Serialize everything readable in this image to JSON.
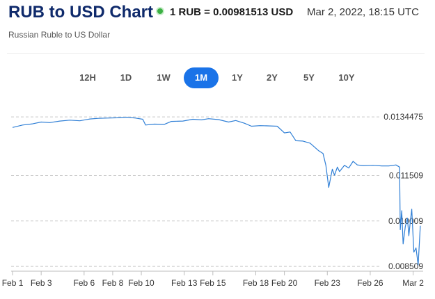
{
  "header": {
    "title": "RUB to USD Chart",
    "rate": "1 RUB = 0.00981513 USD",
    "timestamp": "Mar 2, 2022, 18:15 UTC",
    "subtitle": "Russian Ruble to US Dollar"
  },
  "ranges": [
    {
      "label": "12H",
      "active": false
    },
    {
      "label": "1D",
      "active": false
    },
    {
      "label": "1W",
      "active": false
    },
    {
      "label": "1M",
      "active": true
    },
    {
      "label": "1Y",
      "active": false
    },
    {
      "label": "2Y",
      "active": false
    },
    {
      "label": "5Y",
      "active": false
    },
    {
      "label": "10Y",
      "active": false
    }
  ],
  "colors": {
    "accent": "#1a73e8",
    "line": "#2f7fd6",
    "title": "#0f2a6b",
    "live": "#3cb043"
  },
  "chart_data": {
    "type": "line",
    "ylim": [
      0.00835,
      0.01375
    ],
    "y_ticks": [
      {
        "value": 0.0134475,
        "label": "0.0134475"
      },
      {
        "value": 0.011509,
        "label": "0.011509"
      },
      {
        "value": 0.010009,
        "label": "0.010009"
      },
      {
        "value": 0.008509,
        "label": "0.008509"
      }
    ],
    "x_ticks": [
      {
        "x": 1,
        "label": "Feb 1"
      },
      {
        "x": 3,
        "label": "Feb 3"
      },
      {
        "x": 6,
        "label": "Feb 6"
      },
      {
        "x": 8,
        "label": "Feb 8"
      },
      {
        "x": 10,
        "label": "Feb 10"
      },
      {
        "x": 13,
        "label": "Feb 13"
      },
      {
        "x": 15,
        "label": "Feb 15"
      },
      {
        "x": 18,
        "label": "Feb 18"
      },
      {
        "x": 20,
        "label": "Feb 20"
      },
      {
        "x": 23,
        "label": "Feb 23"
      },
      {
        "x": 26,
        "label": "Feb 26"
      },
      {
        "x": 29,
        "label": "Mar 2"
      }
    ],
    "xlim": [
      0.9,
      29.7
    ],
    "x": [
      1,
      1.7,
      2.4,
      3,
      3.6,
      4.3,
      5,
      5.7,
      6.4,
      7,
      7.6,
      8.3,
      9,
      9.6,
      10.1,
      10.3,
      10.9,
      11.6,
      12.1,
      12.9,
      13.6,
      14.2,
      14.7,
      15.4,
      16.1,
      16.6,
      17.2,
      17.7,
      18.3,
      19,
      19.5,
      20,
      20.4,
      20.8,
      21.3,
      21.8,
      22.4,
      22.7,
      22.9,
      23.1,
      23.35,
      23.5,
      23.7,
      23.85,
      24.2,
      24.5,
      24.8,
      25.1,
      25.5,
      26.2,
      26.8,
      27.3,
      27.8,
      28.05,
      28.1,
      28.2,
      28.3,
      28.45,
      28.6,
      28.7,
      28.8,
      28.9,
      29.05,
      29.2,
      29.35,
      29.5
    ],
    "y": [
      0.0131,
      0.01318,
      0.01322,
      0.01328,
      0.01326,
      0.01331,
      0.01334,
      0.01332,
      0.01338,
      0.0134,
      0.01341,
      0.01342,
      0.01344,
      0.01341,
      0.01337,
      0.01318,
      0.01321,
      0.0132,
      0.0133,
      0.01331,
      0.01337,
      0.01335,
      0.01339,
      0.01336,
      0.01328,
      0.01333,
      0.01324,
      0.01314,
      0.01316,
      0.01315,
      0.01314,
      0.01292,
      0.01295,
      0.01266,
      0.01265,
      0.01258,
      0.01233,
      0.01224,
      0.01185,
      0.01112,
      0.01172,
      0.01152,
      0.01179,
      0.01164,
      0.01185,
      0.01176,
      0.01198,
      0.01186,
      0.01184,
      0.01185,
      0.01183,
      0.01183,
      0.01186,
      0.01179,
      0.00972,
      0.01035,
      0.00925,
      0.00982,
      0.0101,
      0.00952,
      0.00998,
      0.0104,
      0.00898,
      0.00912,
      0.00856,
      0.00985
    ]
  }
}
